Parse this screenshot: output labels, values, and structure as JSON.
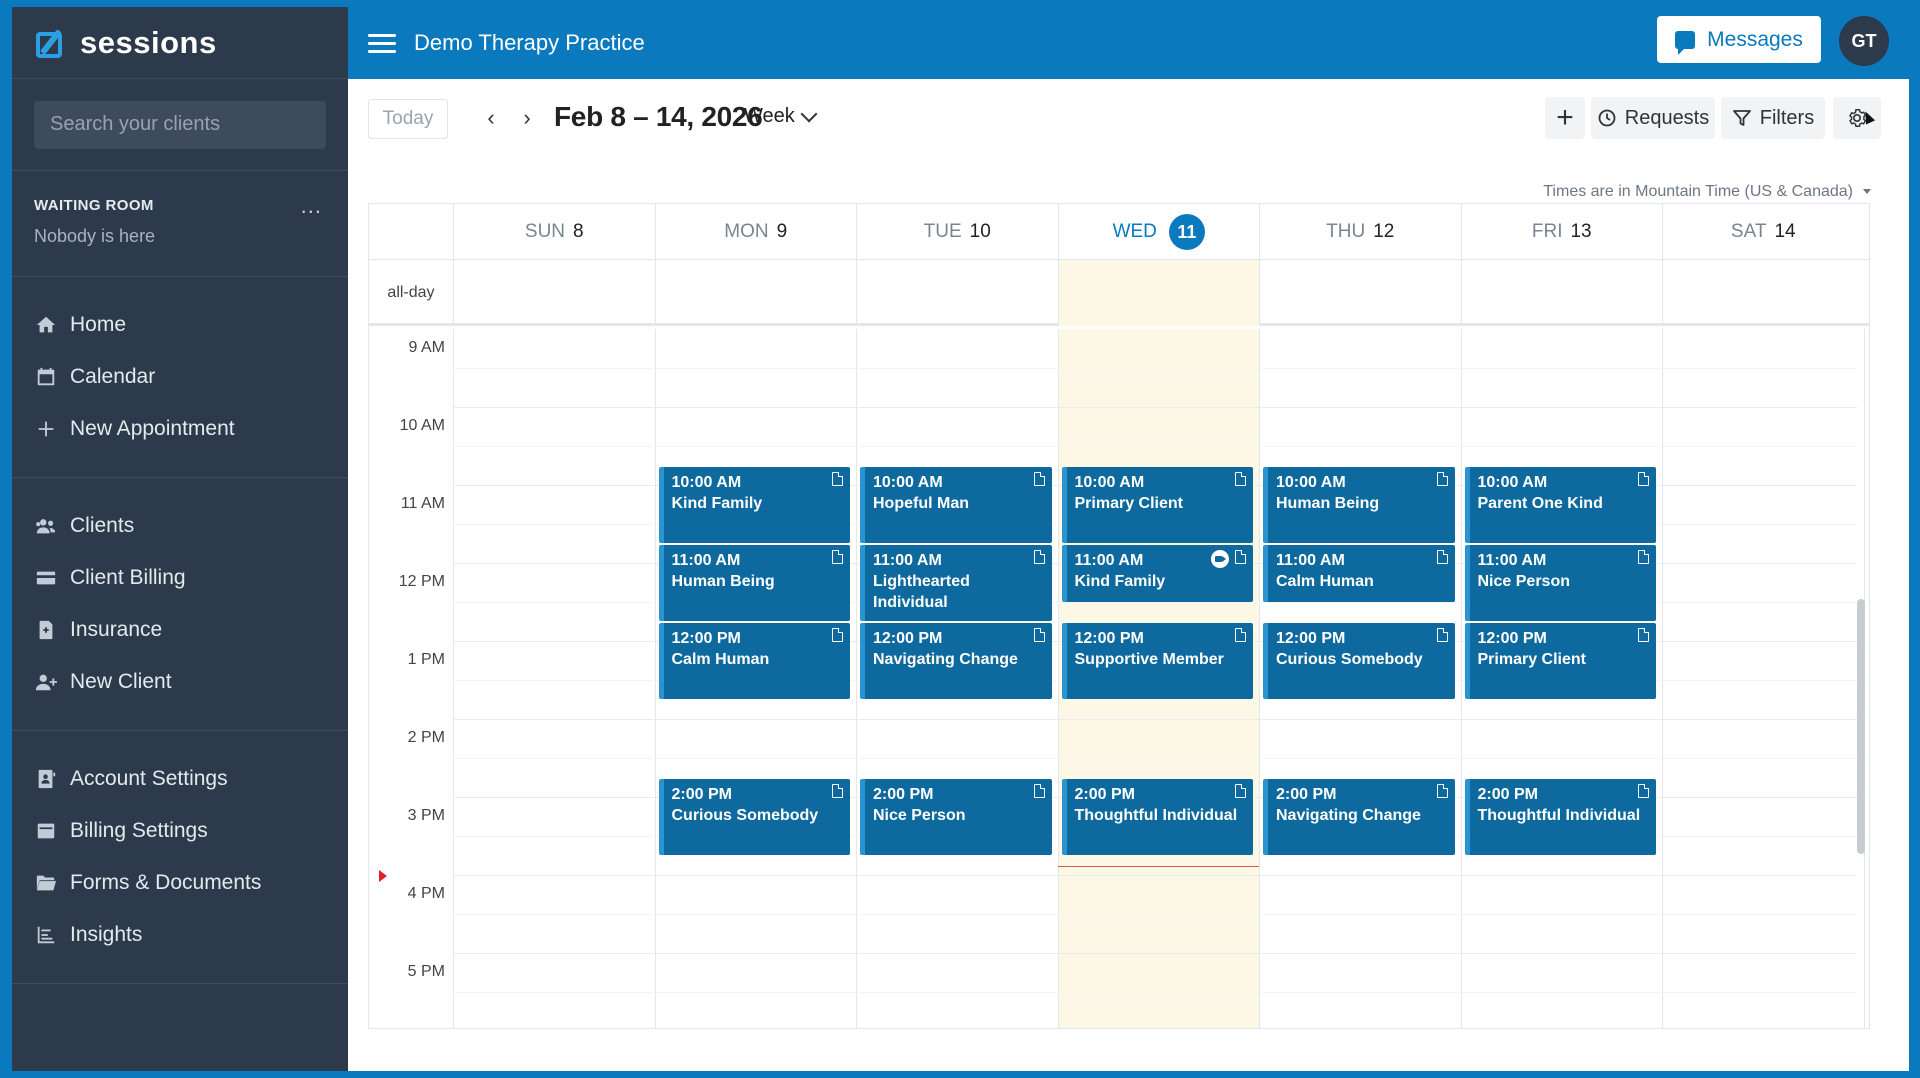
{
  "brand": {
    "name": "sessions"
  },
  "search": {
    "placeholder": "Search your clients"
  },
  "waiting_room": {
    "title": "WAITING ROOM",
    "status": "Nobody is here",
    "menu": "..."
  },
  "nav": {
    "main": [
      {
        "label": "Home",
        "icon": "home-icon"
      },
      {
        "label": "Calendar",
        "icon": "calendar-icon"
      },
      {
        "label": "New Appointment",
        "icon": "plus-icon"
      }
    ],
    "clients": [
      {
        "label": "Clients",
        "icon": "users-icon"
      },
      {
        "label": "Client Billing",
        "icon": "credit-card-icon"
      },
      {
        "label": "Insurance",
        "icon": "insurance-icon"
      },
      {
        "label": "New Client",
        "icon": "add-user-icon"
      }
    ],
    "settings": [
      {
        "label": "Account Settings",
        "icon": "account-icon"
      },
      {
        "label": "Billing Settings",
        "icon": "billing-icon"
      },
      {
        "label": "Forms & Documents",
        "icon": "folder-icon"
      },
      {
        "label": "Insights",
        "icon": "chart-icon"
      }
    ]
  },
  "topbar": {
    "practice_name": "Demo Therapy Practice",
    "messages_label": "Messages",
    "avatar_initials": "GT"
  },
  "toolbar": {
    "today_label": "Today",
    "date_range": "Feb 8 – 14, 2026",
    "view_label": "Week",
    "add_label": "+",
    "requests_label": "Requests",
    "filters_label": "Filters"
  },
  "timezone": "Times are in Mountain Time (US & Canada)",
  "calendar": {
    "allday_label": "all-day",
    "days": [
      {
        "dow": "SUN",
        "num": "8"
      },
      {
        "dow": "MON",
        "num": "9"
      },
      {
        "dow": "TUE",
        "num": "10"
      },
      {
        "dow": "WED",
        "num": "11",
        "today": true
      },
      {
        "dow": "THU",
        "num": "12"
      },
      {
        "dow": "FRI",
        "num": "13"
      },
      {
        "dow": "SAT",
        "num": "14"
      }
    ],
    "hours": [
      "9 AM",
      "10 AM",
      "11 AM",
      "12 PM",
      "1 PM",
      "2 PM",
      "3 PM",
      "4 PM",
      "5 PM"
    ],
    "start_hour": 9,
    "now_hour": 15.5,
    "appointments": [
      {
        "day": 1,
        "start": 10,
        "end": 11,
        "time": "10:00 AM",
        "client": "Kind Family"
      },
      {
        "day": 2,
        "start": 10,
        "end": 11,
        "time": "10:00 AM",
        "client": "Hopeful Man"
      },
      {
        "day": 3,
        "start": 10,
        "end": 11,
        "time": "10:00 AM",
        "client": "Primary Client"
      },
      {
        "day": 4,
        "start": 10,
        "end": 11,
        "time": "10:00 AM",
        "client": "Human Being"
      },
      {
        "day": 5,
        "start": 10,
        "end": 11,
        "time": "10:00 AM",
        "client": "Parent One Kind"
      },
      {
        "day": 1,
        "start": 11,
        "end": 12,
        "time": "11:00 AM",
        "client": "Human Being"
      },
      {
        "day": 2,
        "start": 11,
        "end": 12,
        "time": "11:00 AM",
        "client": "Lighthearted Individual"
      },
      {
        "day": 3,
        "start": 11,
        "end": 11.75,
        "time": "11:00 AM",
        "client": "Kind Family",
        "video": true
      },
      {
        "day": 4,
        "start": 11,
        "end": 11.75,
        "time": "11:00 AM",
        "client": "Calm Human"
      },
      {
        "day": 5,
        "start": 11,
        "end": 12,
        "time": "11:00 AM",
        "client": "Nice Person"
      },
      {
        "day": 1,
        "start": 12,
        "end": 13,
        "time": "12:00 PM",
        "client": "Calm Human"
      },
      {
        "day": 2,
        "start": 12,
        "end": 13,
        "time": "12:00 PM",
        "client": "Navigating Change"
      },
      {
        "day": 3,
        "start": 12,
        "end": 13,
        "time": "12:00 PM",
        "client": "Supportive Member"
      },
      {
        "day": 4,
        "start": 12,
        "end": 13,
        "time": "12:00 PM",
        "client": "Curious Somebody"
      },
      {
        "day": 5,
        "start": 12,
        "end": 13,
        "time": "12:00 PM",
        "client": "Primary Client"
      },
      {
        "day": 1,
        "start": 14,
        "end": 15,
        "time": "2:00 PM",
        "client": "Curious Somebody"
      },
      {
        "day": 2,
        "start": 14,
        "end": 15,
        "time": "2:00 PM",
        "client": "Nice Person"
      },
      {
        "day": 3,
        "start": 14,
        "end": 15,
        "time": "2:00 PM",
        "client": "Thoughtful Individual"
      },
      {
        "day": 4,
        "start": 14,
        "end": 15,
        "time": "2:00 PM",
        "client": "Navigating Change"
      },
      {
        "day": 5,
        "start": 14,
        "end": 15,
        "time": "2:00 PM",
        "client": "Thoughtful Individual"
      }
    ]
  },
  "colors": {
    "brand_blue": "#0a79bd",
    "sidebar": "#2c3a4b",
    "appointment": "#0e6a9e",
    "today_bg": "#fdf8e6",
    "now_line": "#d9534f"
  }
}
